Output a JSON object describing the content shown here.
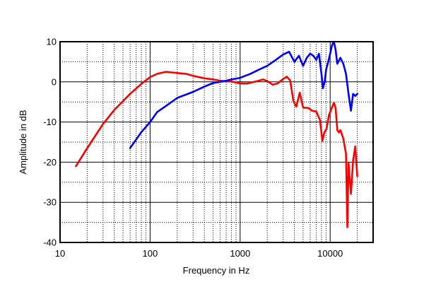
{
  "chart_data": {
    "type": "line",
    "xlabel": "Frequency in Hz",
    "ylabel": "Amplitude in dB",
    "x_scale": "log",
    "xlim": [
      10,
      30000
    ],
    "ylim": [
      -40,
      10
    ],
    "x_ticks": [
      10,
      100,
      1000,
      10000
    ],
    "x_tick_labels": [
      "10",
      "100",
      "1000",
      "10000"
    ],
    "y_ticks": [
      10,
      0,
      -10,
      -20,
      -30,
      -40
    ],
    "y_tick_labels": [
      "10",
      "0",
      "-10",
      "-20",
      "-30",
      "-40"
    ],
    "grid": true,
    "series": [
      {
        "color": "#ff0000",
        "points": [
          [
            15,
            -21
          ],
          [
            20,
            -16.5
          ],
          [
            30,
            -10.5
          ],
          [
            40,
            -7
          ],
          [
            60,
            -3
          ],
          [
            80,
            -0.5
          ],
          [
            100,
            1.2
          ],
          [
            120,
            2.0
          ],
          [
            150,
            2.5
          ],
          [
            200,
            2.2
          ],
          [
            250,
            2.0
          ],
          [
            300,
            1.5
          ],
          [
            400,
            0.9
          ],
          [
            500,
            0.6
          ],
          [
            600,
            0.3
          ],
          [
            700,
            0.1
          ],
          [
            800,
            0.1
          ],
          [
            1000,
            -0.4
          ],
          [
            1200,
            -0.4
          ],
          [
            1500,
            0.1
          ],
          [
            1800,
            0.6
          ],
          [
            2000,
            0.2
          ],
          [
            2300,
            -0.7
          ],
          [
            2600,
            -0.4
          ],
          [
            3000,
            0.7
          ],
          [
            3300,
            1.3
          ],
          [
            3600,
            0.3
          ],
          [
            3900,
            -4.7
          ],
          [
            4200,
            -6.2
          ],
          [
            4600,
            -2.7
          ],
          [
            5000,
            -6.4
          ],
          [
            5700,
            -6.5
          ],
          [
            6300,
            -7.2
          ],
          [
            7000,
            -7.4
          ],
          [
            7700,
            -9.5
          ],
          [
            8200,
            -14.7
          ],
          [
            8600,
            -12.6
          ],
          [
            9100,
            -11.7
          ],
          [
            9700,
            -8.3
          ],
          [
            10500,
            -6.3
          ],
          [
            11000,
            -5.2
          ],
          [
            11500,
            -6.5
          ],
          [
            12000,
            -12
          ],
          [
            12500,
            -12.6
          ],
          [
            13000,
            -12
          ],
          [
            14000,
            -14.1
          ],
          [
            15000,
            -17.9
          ],
          [
            15500,
            -36.2
          ],
          [
            16000,
            -20.2
          ],
          [
            17000,
            -27.9
          ],
          [
            18000,
            -19.5
          ],
          [
            19000,
            -16.1
          ],
          [
            20000,
            -23.5
          ]
        ]
      },
      {
        "color": "#0000ff",
        "points": [
          [
            60,
            -16.5
          ],
          [
            80,
            -12.5
          ],
          [
            100,
            -10
          ],
          [
            120,
            -7.5
          ],
          [
            150,
            -6
          ],
          [
            200,
            -4
          ],
          [
            300,
            -2.5
          ],
          [
            400,
            -1.2
          ],
          [
            500,
            -0.3
          ],
          [
            600,
            0.0
          ],
          [
            700,
            0.3
          ],
          [
            800,
            0.6
          ],
          [
            1000,
            1.0
          ],
          [
            1300,
            2.0
          ],
          [
            1600,
            3.0
          ],
          [
            2000,
            4.0
          ],
          [
            2500,
            5.5
          ],
          [
            3000,
            6.8
          ],
          [
            3500,
            7.5
          ],
          [
            4000,
            5.0
          ],
          [
            4500,
            6.5
          ],
          [
            5000,
            4.0
          ],
          [
            5500,
            6.0
          ],
          [
            6000,
            7.0
          ],
          [
            6500,
            6.5
          ],
          [
            7000,
            5.5
          ],
          [
            7500,
            7.0
          ],
          [
            8000,
            2.0
          ],
          [
            8300,
            -1.6
          ],
          [
            8700,
            0.0
          ],
          [
            9000,
            3.0
          ],
          [
            9500,
            5.0
          ],
          [
            10000,
            7.0
          ],
          [
            10500,
            9.2
          ],
          [
            11000,
            10.0
          ],
          [
            11500,
            8.0
          ],
          [
            12000,
            4.5
          ],
          [
            13000,
            6.0
          ],
          [
            14000,
            4.5
          ],
          [
            15000,
            2.0
          ],
          [
            16000,
            -3.0
          ],
          [
            17000,
            -7.2
          ],
          [
            18000,
            -3.0
          ],
          [
            19000,
            -3.5
          ],
          [
            20000,
            -3.0
          ]
        ]
      }
    ]
  }
}
